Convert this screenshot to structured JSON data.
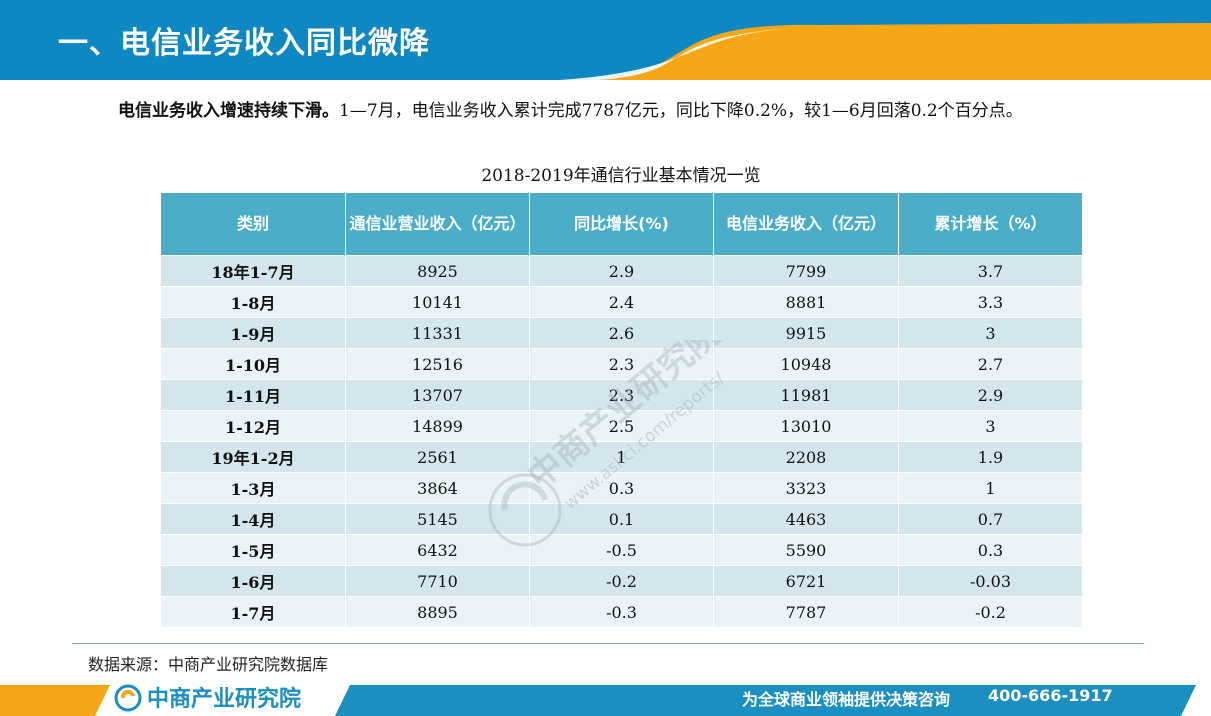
{
  "header": {
    "title": "一、电信业务收入同比微降"
  },
  "paragraph": {
    "lead": "电信业务收入增速持续下滑。",
    "body": "1—7月，电信业务收入累计完成7787亿元，同比下降0.2%，较1—6月回落0.2个百分点。"
  },
  "table": {
    "caption": "2018-2019年通信行业基本情况一览",
    "headers": [
      "类别",
      "通信业营业收入（亿元）",
      "同比增长(%)",
      "电信业务收入（亿元）",
      "累计增长（%）"
    ],
    "rows": [
      [
        "18年1-7月",
        "8925",
        "2.9",
        "7799",
        "3.7"
      ],
      [
        "1-8月",
        "10141",
        "2.4",
        "8881",
        "3.3"
      ],
      [
        "1-9月",
        "11331",
        "2.6",
        "9915",
        "3"
      ],
      [
        "1-10月",
        "12516",
        "2.3",
        "10948",
        "2.7"
      ],
      [
        "1-11月",
        "13707",
        "2.3",
        "11981",
        "2.9"
      ],
      [
        "1-12月",
        "14899",
        "2.5",
        "13010",
        "3"
      ],
      [
        "19年1-2月",
        "2561",
        "1",
        "2208",
        "1.9"
      ],
      [
        "1-3月",
        "3864",
        "0.3",
        "3323",
        "1"
      ],
      [
        "1-4月",
        "5145",
        "0.1",
        "4463",
        "0.7"
      ],
      [
        "1-5月",
        "6432",
        "-0.5",
        "5590",
        "0.3"
      ],
      [
        "1-6月",
        "7710",
        "-0.2",
        "6721",
        "-0.03"
      ],
      [
        "1-7月",
        "8895",
        "-0.3",
        "7787",
        "-0.2"
      ]
    ]
  },
  "watermark": {
    "name": "中商产业研究院",
    "url": "www.askci.com/reports/"
  },
  "source": "数据来源：中商产业研究院数据库",
  "footer": {
    "logo": "中商产业研究院",
    "slogan": "为全球商业领袖提供决策咨询",
    "phone": "400-666-1917"
  },
  "colors": {
    "header_blue": "#0e88c3",
    "accent_orange": "#f7a616",
    "table_header": "#4aaec9",
    "row_dark": "#d3e6ee",
    "row_light": "#eaf3f7"
  }
}
